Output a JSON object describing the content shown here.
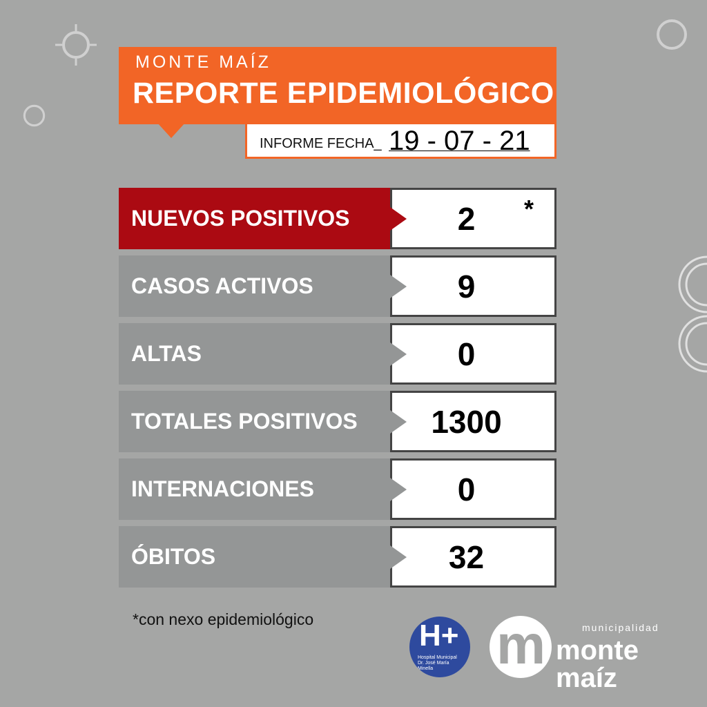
{
  "header": {
    "subtitle": "MONTE MAÍZ",
    "title": "REPORTE EPIDEMIOLÓGICO",
    "date_label": "INFORME FECHA_",
    "date_value": "19 - 07 - 21"
  },
  "colors": {
    "orange": "#f26526",
    "red": "#ab0a12",
    "gray": "#949696",
    "background": "#a5a6a5"
  },
  "rows": [
    {
      "label": "NUEVOS POSITIVOS",
      "value": "2",
      "mark": "*",
      "highlight": true
    },
    {
      "label": "CASOS ACTIVOS",
      "value": "9"
    },
    {
      "label": "ALTAS",
      "value": "0"
    },
    {
      "label": "TOTALES POSITIVOS",
      "value": "1300"
    },
    {
      "label": "INTERNACIONES",
      "value": "0"
    },
    {
      "label": "ÓBITOS",
      "value": "32"
    }
  ],
  "footnote": "*con nexo epidemiológico",
  "logos": {
    "hospital_mark": "H+",
    "hospital_text": "Hospital Municipal Dr. José María Minella",
    "muni_small": "municipalidad",
    "muni_big": "monte maíz"
  }
}
